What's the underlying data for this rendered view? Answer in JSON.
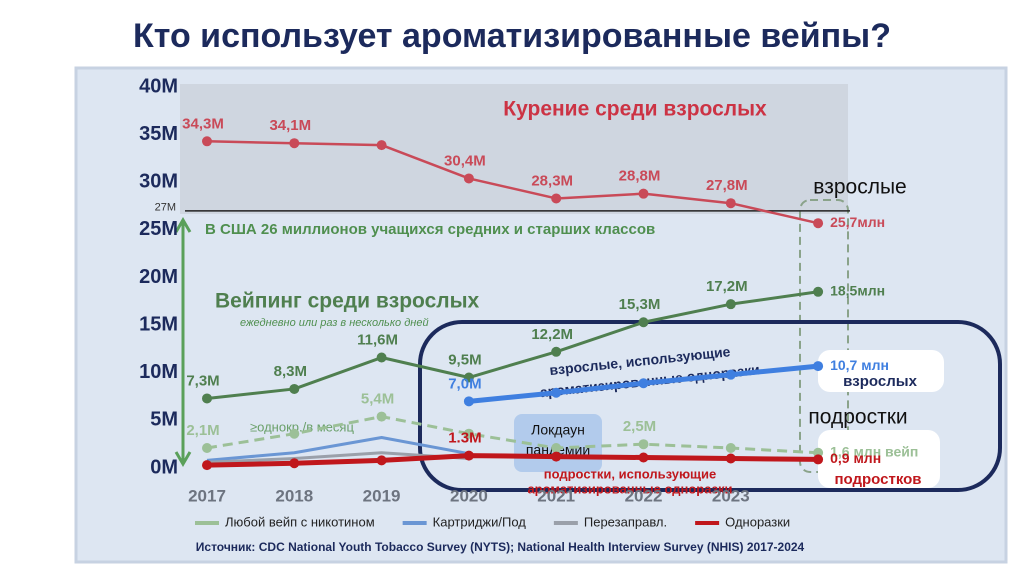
{
  "chart_data": {
    "type": "line",
    "title": "Кто использует ароматизированные вейпы?",
    "source": "Источник: CDC National Youth Tobacco Survey (NYTS); National Health Interview Survey (NHIS) 2017-2024",
    "categories": [
      "2017",
      "2018",
      "2019",
      "2020",
      "2021",
      "2022",
      "2023",
      null
    ],
    "ylim": [
      0,
      40
    ],
    "yticks": [
      {
        "value": 0,
        "label": "0M"
      },
      {
        "value": 5,
        "label": "5M"
      },
      {
        "value": 10,
        "label": "10M"
      },
      {
        "value": 15,
        "label": "15M"
      },
      {
        "value": 20,
        "label": "20M"
      },
      {
        "value": 25,
        "label": "25M"
      },
      {
        "value": 30,
        "label": "30M"
      },
      {
        "value": 35,
        "label": "35M"
      },
      {
        "value": 40,
        "label": "40M"
      }
    ],
    "reference_line": {
      "value": 27,
      "label": "27M"
    },
    "series": [
      {
        "color": "#c94a58",
        "marker": true,
        "values": [
          34.3,
          34.1,
          33.9,
          30.4,
          28.3,
          28.8,
          27.8,
          25.7
        ],
        "value_labels": [
          "34,3M",
          "34,1M",
          null,
          "30,4M",
          "28,3M",
          "28,8M",
          "27,8M",
          "25,7млн"
        ]
      },
      {
        "color": "#4f7f4f",
        "marker": true,
        "values": [
          7.3,
          8.3,
          11.6,
          9.5,
          12.2,
          15.3,
          17.2,
          18.5
        ],
        "value_labels": [
          "7,3M",
          "8,3M",
          "11,6M",
          "9,5M",
          "12,2M",
          "15,3M",
          "17,2M",
          "18,5млн"
        ]
      },
      {
        "name": "Любой вейп с никотином",
        "color": "#9cc097",
        "dashed": true,
        "marker": true,
        "values": [
          2.1,
          3.6,
          5.4,
          3.6,
          2.1,
          2.5,
          2.1,
          1.6
        ],
        "value_labels": [
          "2,1M",
          null,
          "5,4M",
          null,
          null,
          "2,5M",
          null,
          "1,6 млн вейп"
        ]
      },
      {
        "name": "Картриджи/Под",
        "color": "#6a96d4",
        "values": [
          0.8,
          1.6,
          3.2,
          1.5,
          null,
          null,
          null,
          null
        ]
      },
      {
        "name": "Перезаправл.",
        "color": "#9aa0aa",
        "values": [
          0.6,
          1.0,
          1.6,
          1.0,
          null,
          null,
          null,
          null
        ]
      },
      {
        "name": "Одноразки",
        "color": "#c0171c",
        "marker": true,
        "values": [
          0.3,
          0.5,
          0.8,
          1.3,
          1.2,
          1.1,
          1.0,
          0.9
        ],
        "value_labels": [
          null,
          null,
          null,
          "1.3M",
          null,
          null,
          null,
          "0,9 млн"
        ]
      },
      {
        "color": "#3f7fe0",
        "marker": true,
        "values": [
          null,
          null,
          null,
          7.0,
          7.9,
          8.9,
          9.8,
          10.7
        ],
        "value_labels": [
          null,
          null,
          null,
          "7,0M",
          null,
          null,
          null,
          "10,7 млн"
        ]
      }
    ],
    "annotations": [
      "Курение среди взрослых",
      "В США 26 миллионов учащихся средних и старших классов",
      "Вейпинг среди взрослых",
      "ежедневно или раз в несколько дней",
      "≥однокр./в месяц",
      "взрослые",
      "подростки",
      "Локдаун",
      "пандемии",
      "взрослые, использующие",
      "ароматизированные одноразки",
      "подростки, использующие",
      "ароматизированные одноразки",
      "взрослых",
      "подростков"
    ]
  }
}
